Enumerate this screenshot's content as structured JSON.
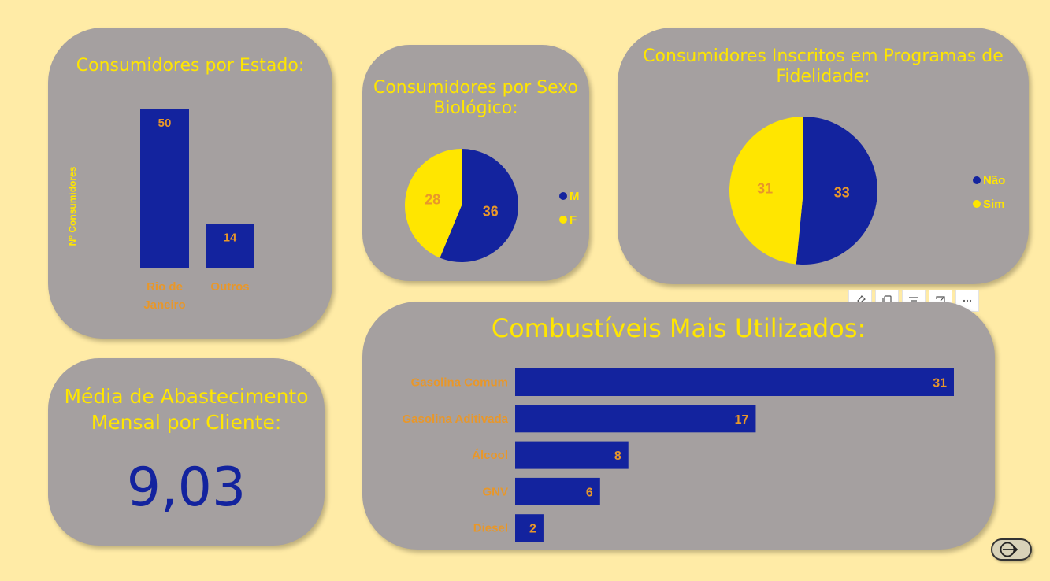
{
  "colors": {
    "blue": "#13239E",
    "yellow": "#FFE600",
    "orange": "#E8972A",
    "card": "#A5A0A0",
    "background": "#FFEBA6"
  },
  "state_card": {
    "title": "Consumidores por Estado:",
    "ylabel": "N° Consumidores"
  },
  "sex_card": {
    "title_line1": "Consumidores por Sexo",
    "title_line2": "Biológico:"
  },
  "loyalty_card": {
    "title_line1": "Consumidores Inscritos em Programas de",
    "title_line2": "Fidelidade:"
  },
  "fuel_card": {
    "title": "Combustíveis Mais Utilizados:"
  },
  "kpi_card": {
    "title_line1": "Média de Abastecimento",
    "title_line2": "Mensal por Cliente:",
    "value": "9,03"
  },
  "toolbar": {
    "icons": [
      "pin-icon",
      "copy-icon",
      "filter-icon",
      "focus-mode-icon",
      "more-options-icon"
    ]
  },
  "chart_data": [
    {
      "type": "bar",
      "title": "Consumidores por Estado:",
      "ylabel": "N° Consumidores",
      "categories": [
        "Rio de Janeiro",
        "Outros"
      ],
      "category_lines": [
        [
          "Rio de",
          "Janeiro"
        ],
        [
          "Outros"
        ]
      ],
      "values": [
        50,
        14
      ]
    },
    {
      "type": "pie",
      "title": "Consumidores por Sexo Biológico:",
      "labels": [
        "M",
        "F"
      ],
      "values": [
        36,
        28
      ],
      "colors": [
        "#13239E",
        "#FFE600"
      ]
    },
    {
      "type": "pie",
      "title": "Consumidores Inscritos em Programas de Fidelidade:",
      "labels": [
        "Não",
        "Sim"
      ],
      "values": [
        33,
        31
      ],
      "colors": [
        "#13239E",
        "#FFE600"
      ]
    },
    {
      "type": "bar",
      "orientation": "horizontal",
      "title": "Combustíveis Mais Utilizados:",
      "categories": [
        "Gasolina Comum",
        "Gasolina Aditivada",
        "Álcool",
        "GNV",
        "Diesel"
      ],
      "values": [
        31,
        17,
        8,
        6,
        2
      ]
    }
  ]
}
